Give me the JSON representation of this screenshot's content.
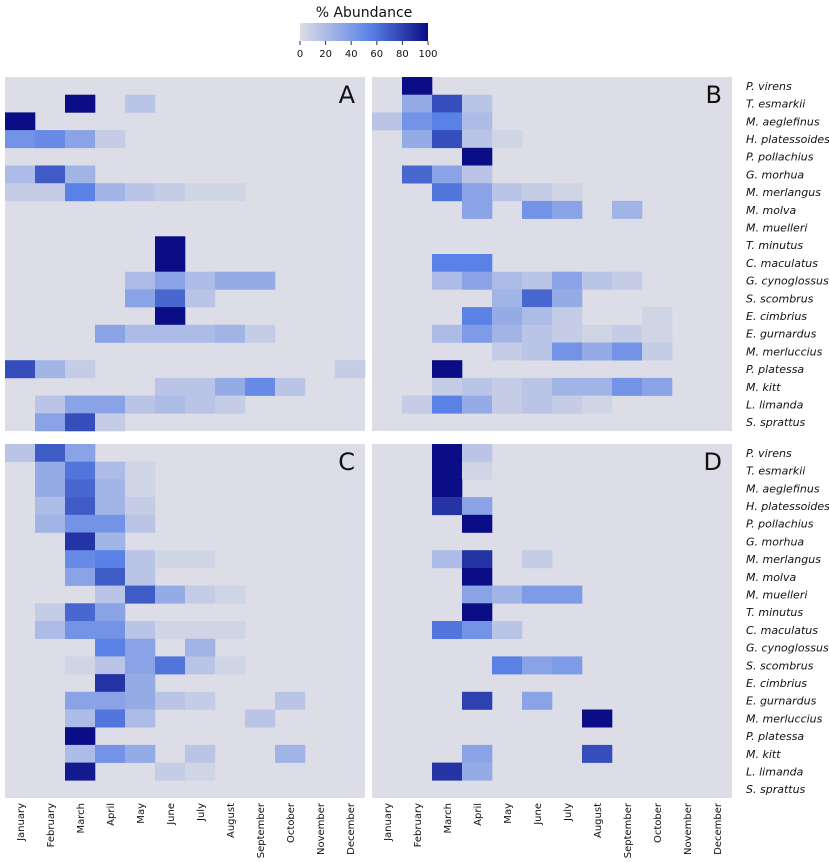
{
  "chart_data": {
    "type": "heatmap",
    "legend": {
      "title": "% Abundance",
      "ticks": [
        "0",
        "20",
        "40",
        "60",
        "80",
        "100"
      ],
      "colors": [
        "#dcdde6",
        "#0a0d85"
      ]
    },
    "months": [
      "January",
      "February",
      "March",
      "April",
      "May",
      "June",
      "July",
      "August",
      "September",
      "October",
      "November",
      "December"
    ],
    "species": [
      "P. virens",
      "T. esmarkii",
      "M. aeglefinus",
      "H. platessoides",
      "P. pollachius",
      "G. morhua",
      "M. merlangus",
      "M. molva",
      "M. muelleri",
      "T. minutus",
      "C. maculatus",
      "G. cynoglossus",
      "S. scombrus",
      "E. cimbrius",
      "E. gurnardus",
      "M. merluccius",
      "P. platessa",
      "M. kitt",
      "L. limanda",
      "S. sprattus"
    ],
    "panels": [
      {
        "label": "A",
        "values": [
          [
            0,
            0,
            0,
            0,
            0,
            0,
            0,
            0,
            0,
            0,
            0,
            0
          ],
          [
            0,
            0,
            100,
            0,
            15,
            0,
            0,
            0,
            0,
            0,
            0,
            0
          ],
          [
            100,
            0,
            0,
            0,
            0,
            0,
            0,
            0,
            0,
            0,
            0,
            0
          ],
          [
            45,
            50,
            35,
            10,
            0,
            0,
            0,
            0,
            0,
            0,
            0,
            0
          ],
          [
            0,
            0,
            0,
            0,
            0,
            0,
            0,
            0,
            0,
            0,
            0,
            0
          ],
          [
            20,
            70,
            25,
            0,
            0,
            0,
            0,
            0,
            0,
            0,
            0,
            0
          ],
          [
            10,
            10,
            55,
            25,
            15,
            10,
            5,
            5,
            0,
            0,
            0,
            0
          ],
          [
            0,
            0,
            0,
            0,
            0,
            0,
            0,
            0,
            0,
            0,
            0,
            0
          ],
          [
            0,
            0,
            0,
            0,
            0,
            0,
            0,
            0,
            0,
            0,
            0,
            0
          ],
          [
            0,
            0,
            0,
            0,
            0,
            100,
            0,
            0,
            0,
            0,
            0,
            0
          ],
          [
            0,
            0,
            0,
            0,
            0,
            100,
            0,
            0,
            0,
            0,
            0,
            0
          ],
          [
            0,
            0,
            0,
            0,
            20,
            35,
            20,
            30,
            30,
            0,
            0,
            0
          ],
          [
            0,
            0,
            0,
            0,
            35,
            65,
            15,
            0,
            0,
            0,
            0,
            0
          ],
          [
            0,
            0,
            0,
            0,
            0,
            100,
            0,
            0,
            0,
            0,
            0,
            0
          ],
          [
            0,
            0,
            0,
            35,
            20,
            20,
            20,
            25,
            10,
            0,
            0,
            0
          ],
          [
            0,
            0,
            0,
            0,
            0,
            0,
            0,
            0,
            0,
            0,
            0,
            0
          ],
          [
            75,
            25,
            10,
            0,
            0,
            0,
            0,
            0,
            0,
            0,
            0,
            10
          ],
          [
            0,
            0,
            0,
            0,
            0,
            15,
            15,
            30,
            50,
            15,
            0,
            0
          ],
          [
            0,
            15,
            35,
            35,
            15,
            20,
            15,
            10,
            0,
            0,
            0,
            0
          ],
          [
            0,
            35,
            75,
            10,
            0,
            0,
            0,
            0,
            0,
            0,
            0,
            0
          ]
        ]
      },
      {
        "label": "B",
        "values": [
          [
            0,
            100,
            0,
            0,
            0,
            0,
            0,
            0,
            0,
            0,
            0,
            0
          ],
          [
            0,
            30,
            75,
            15,
            0,
            0,
            0,
            0,
            0,
            0,
            0,
            0
          ],
          [
            15,
            45,
            55,
            20,
            0,
            0,
            0,
            0,
            0,
            0,
            0,
            0
          ],
          [
            0,
            30,
            75,
            15,
            5,
            0,
            0,
            0,
            0,
            0,
            0,
            0
          ],
          [
            0,
            0,
            0,
            100,
            0,
            0,
            0,
            0,
            0,
            0,
            0,
            0
          ],
          [
            0,
            65,
            35,
            15,
            0,
            0,
            0,
            0,
            0,
            0,
            0,
            0
          ],
          [
            0,
            0,
            60,
            35,
            15,
            10,
            5,
            0,
            0,
            0,
            0,
            0
          ],
          [
            0,
            0,
            0,
            35,
            0,
            45,
            35,
            0,
            25,
            0,
            0,
            0
          ],
          [
            0,
            0,
            0,
            0,
            0,
            0,
            0,
            0,
            0,
            0,
            0,
            0
          ],
          [
            0,
            0,
            0,
            0,
            0,
            0,
            0,
            0,
            0,
            0,
            0,
            0
          ],
          [
            0,
            0,
            55,
            55,
            0,
            0,
            0,
            0,
            0,
            0,
            0,
            0
          ],
          [
            0,
            0,
            20,
            35,
            20,
            15,
            35,
            15,
            10,
            0,
            0,
            0
          ],
          [
            0,
            0,
            0,
            0,
            25,
            65,
            30,
            0,
            0,
            0,
            0,
            0
          ],
          [
            0,
            0,
            0,
            55,
            30,
            20,
            10,
            0,
            0,
            5,
            0,
            0
          ],
          [
            0,
            0,
            20,
            40,
            25,
            15,
            10,
            5,
            10,
            5,
            0,
            0
          ],
          [
            0,
            0,
            0,
            0,
            10,
            15,
            45,
            30,
            45,
            10,
            0,
            0
          ],
          [
            0,
            0,
            100,
            0,
            0,
            0,
            0,
            0,
            0,
            0,
            0,
            0
          ],
          [
            0,
            0,
            10,
            15,
            10,
            15,
            25,
            25,
            45,
            35,
            0,
            0
          ],
          [
            0,
            10,
            55,
            30,
            10,
            15,
            10,
            5,
            0,
            0,
            0,
            0
          ],
          [
            0,
            0,
            0,
            0,
            0,
            0,
            0,
            0,
            0,
            0,
            0,
            0
          ]
        ]
      },
      {
        "label": "C",
        "values": [
          [
            15,
            70,
            35,
            0,
            0,
            0,
            0,
            0,
            0,
            0,
            0,
            0
          ],
          [
            0,
            30,
            60,
            20,
            5,
            0,
            0,
            0,
            0,
            0,
            0,
            0
          ],
          [
            0,
            30,
            65,
            25,
            5,
            0,
            0,
            0,
            0,
            0,
            0,
            0
          ],
          [
            0,
            20,
            70,
            25,
            10,
            0,
            0,
            0,
            0,
            0,
            0,
            0
          ],
          [
            0,
            25,
            45,
            45,
            15,
            0,
            0,
            0,
            0,
            0,
            0,
            0
          ],
          [
            0,
            0,
            85,
            25,
            0,
            0,
            0,
            0,
            0,
            0,
            0,
            0
          ],
          [
            0,
            0,
            50,
            55,
            15,
            5,
            5,
            0,
            0,
            0,
            0,
            0
          ],
          [
            0,
            0,
            35,
            70,
            15,
            0,
            0,
            0,
            0,
            0,
            0,
            0
          ],
          [
            0,
            0,
            0,
            15,
            70,
            30,
            10,
            5,
            0,
            0,
            0,
            0
          ],
          [
            0,
            10,
            65,
            35,
            0,
            0,
            0,
            0,
            0,
            0,
            0,
            0
          ],
          [
            0,
            20,
            45,
            45,
            15,
            5,
            5,
            5,
            0,
            0,
            0,
            0
          ],
          [
            0,
            0,
            0,
            55,
            35,
            0,
            25,
            0,
            0,
            0,
            0,
            0
          ],
          [
            0,
            0,
            5,
            15,
            35,
            60,
            15,
            5,
            0,
            0,
            0,
            0
          ],
          [
            0,
            0,
            0,
            85,
            30,
            0,
            0,
            0,
            0,
            0,
            0,
            0
          ],
          [
            0,
            0,
            35,
            35,
            30,
            15,
            10,
            0,
            0,
            15,
            0,
            0
          ],
          [
            0,
            0,
            20,
            60,
            20,
            0,
            0,
            0,
            15,
            0,
            0,
            0
          ],
          [
            0,
            0,
            100,
            0,
            0,
            0,
            0,
            0,
            0,
            0,
            0,
            0
          ],
          [
            0,
            0,
            20,
            45,
            30,
            0,
            15,
            0,
            0,
            25,
            0,
            0
          ],
          [
            0,
            0,
            95,
            0,
            0,
            10,
            5,
            0,
            0,
            0,
            0,
            0
          ],
          [
            0,
            0,
            0,
            0,
            0,
            0,
            0,
            0,
            0,
            0,
            0,
            0
          ]
        ]
      },
      {
        "label": "D",
        "values": [
          [
            0,
            0,
            100,
            15,
            0,
            0,
            0,
            0,
            0,
            0,
            0,
            0
          ],
          [
            0,
            0,
            100,
            5,
            0,
            0,
            0,
            0,
            0,
            0,
            0,
            0
          ],
          [
            0,
            0,
            100,
            0,
            0,
            0,
            0,
            0,
            0,
            0,
            0,
            0
          ],
          [
            0,
            0,
            85,
            35,
            0,
            0,
            0,
            0,
            0,
            0,
            0,
            0
          ],
          [
            0,
            0,
            0,
            100,
            0,
            0,
            0,
            0,
            0,
            0,
            0,
            0
          ],
          [
            0,
            0,
            0,
            0,
            0,
            0,
            0,
            0,
            0,
            0,
            0,
            0
          ],
          [
            0,
            0,
            20,
            85,
            0,
            10,
            0,
            0,
            0,
            0,
            0,
            0
          ],
          [
            0,
            0,
            0,
            100,
            0,
            0,
            0,
            0,
            0,
            0,
            0,
            0
          ],
          [
            0,
            0,
            0,
            35,
            25,
            40,
            40,
            0,
            0,
            0,
            0,
            0
          ],
          [
            0,
            0,
            0,
            100,
            0,
            0,
            0,
            0,
            0,
            0,
            0,
            0
          ],
          [
            0,
            0,
            60,
            45,
            15,
            0,
            0,
            0,
            0,
            0,
            0,
            0
          ],
          [
            0,
            0,
            0,
            0,
            0,
            0,
            0,
            0,
            0,
            0,
            0,
            0
          ],
          [
            0,
            0,
            0,
            0,
            55,
            35,
            40,
            0,
            0,
            0,
            0,
            0
          ],
          [
            0,
            0,
            0,
            0,
            0,
            0,
            0,
            0,
            0,
            0,
            0,
            0
          ],
          [
            0,
            0,
            0,
            80,
            0,
            35,
            0,
            0,
            0,
            0,
            0,
            0
          ],
          [
            0,
            0,
            0,
            0,
            0,
            0,
            0,
            100,
            0,
            0,
            0,
            0
          ],
          [
            0,
            0,
            0,
            0,
            0,
            0,
            0,
            0,
            0,
            0,
            0,
            0
          ],
          [
            0,
            0,
            0,
            35,
            0,
            0,
            0,
            75,
            0,
            0,
            0,
            0
          ],
          [
            0,
            0,
            85,
            30,
            0,
            0,
            0,
            0,
            0,
            0,
            0,
            0
          ],
          [
            0,
            0,
            0,
            0,
            0,
            0,
            0,
            0,
            0,
            0,
            0,
            0
          ]
        ]
      }
    ]
  }
}
